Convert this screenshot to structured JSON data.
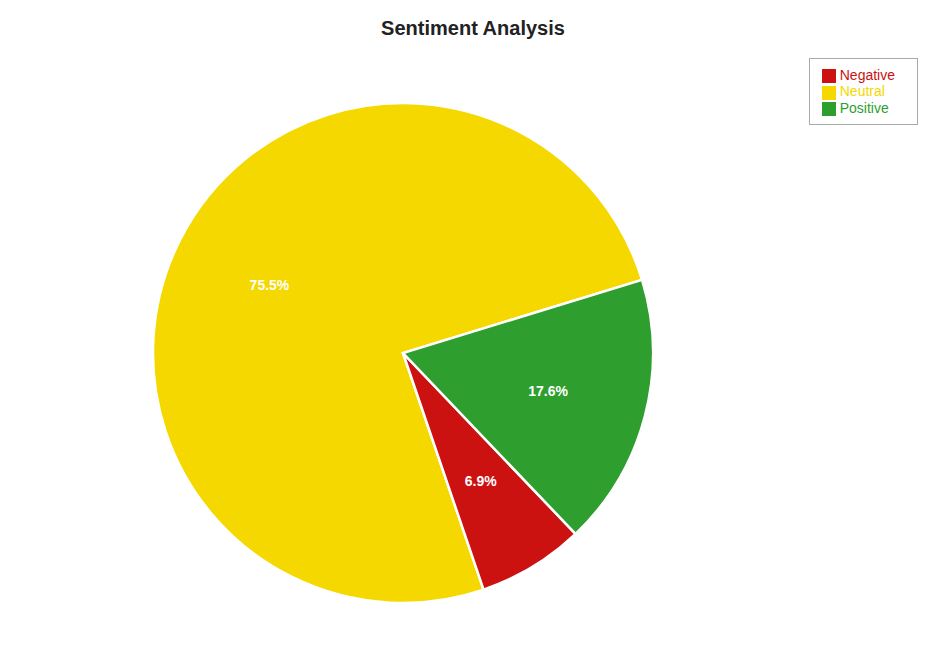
{
  "chart_data": {
    "type": "pie",
    "title": "Sentiment Analysis",
    "categories": [
      "Neutral",
      "Negative",
      "Positive"
    ],
    "values": [
      75.5,
      6.9,
      17.6
    ],
    "value_labels": [
      "75.5%",
      "6.9%",
      "17.6%"
    ],
    "colors": [
      "#f5d800",
      "#cc1111",
      "#2e9e2e"
    ],
    "data_labels": true,
    "legend": "upper right"
  }
}
